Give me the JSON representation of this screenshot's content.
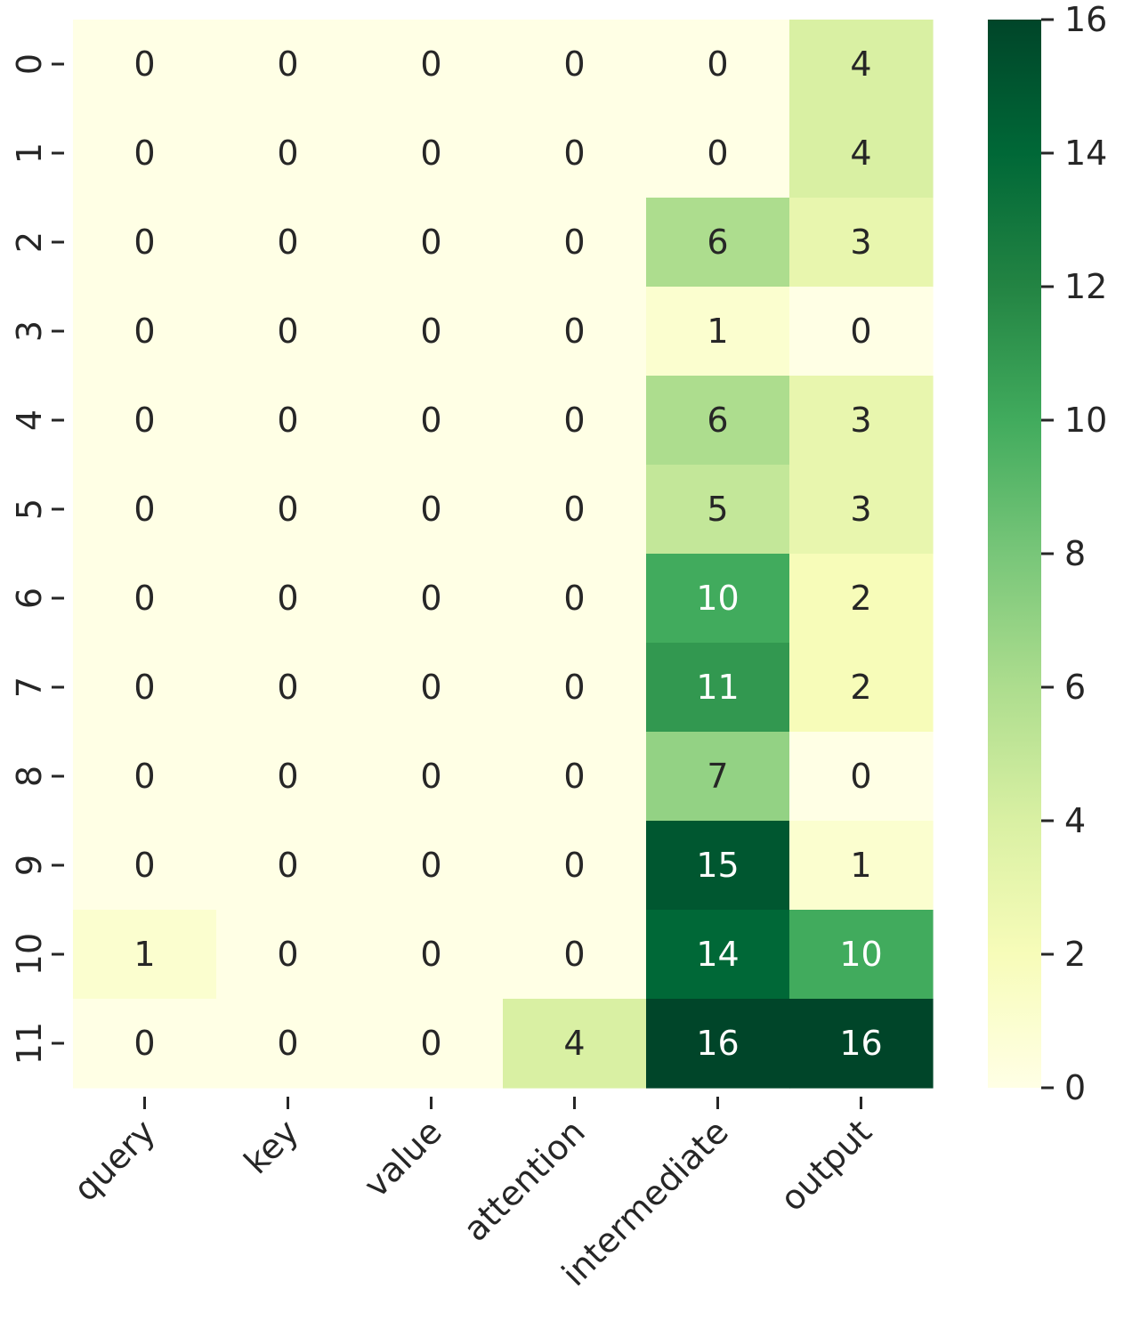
{
  "chart_data": {
    "type": "heatmap",
    "title": "",
    "xlabel": "",
    "ylabel": "",
    "x_categories": [
      "query",
      "key",
      "value",
      "attention",
      "intermediate",
      "output"
    ],
    "y_categories": [
      "0",
      "1",
      "2",
      "3",
      "4",
      "5",
      "6",
      "7",
      "8",
      "9",
      "10",
      "11"
    ],
    "values": [
      [
        0,
        0,
        0,
        0,
        0,
        4
      ],
      [
        0,
        0,
        0,
        0,
        0,
        4
      ],
      [
        0,
        0,
        0,
        0,
        6,
        3
      ],
      [
        0,
        0,
        0,
        0,
        1,
        0
      ],
      [
        0,
        0,
        0,
        0,
        6,
        3
      ],
      [
        0,
        0,
        0,
        0,
        5,
        3
      ],
      [
        0,
        0,
        0,
        0,
        10,
        2
      ],
      [
        0,
        0,
        0,
        0,
        11,
        2
      ],
      [
        0,
        0,
        0,
        0,
        7,
        0
      ],
      [
        0,
        0,
        0,
        0,
        15,
        1
      ],
      [
        1,
        0,
        0,
        0,
        14,
        10
      ],
      [
        0,
        0,
        0,
        4,
        16,
        16
      ]
    ],
    "value_range": [
      0,
      16
    ],
    "colormap": "Greens-yellow",
    "annotate_values": true,
    "colorbar": {
      "ticks": [
        "0",
        "2",
        "4",
        "6",
        "8",
        "10",
        "12",
        "14",
        "16"
      ],
      "placement": "right"
    },
    "x_tick_rotation_deg": 45,
    "y_tick_rotation_deg": 90
  },
  "colors": {
    "low": "#ffffe5",
    "high": "#004529",
    "text_dark": "#262626",
    "text_light": "#ffffff"
  }
}
